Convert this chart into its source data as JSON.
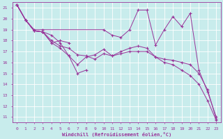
{
  "xlabel": "Windchill (Refroidissement éolien,°C)",
  "bg_color": "#c8ecec",
  "line_color": "#993399",
  "grid_color": "#aadddd",
  "xlim": [
    -0.5,
    23.5
  ],
  "ylim": [
    10.5,
    21.5
  ],
  "yticks": [
    11,
    12,
    13,
    14,
    15,
    16,
    17,
    18,
    19,
    20,
    21
  ],
  "xticks": [
    0,
    1,
    2,
    3,
    4,
    5,
    6,
    7,
    8,
    9,
    10,
    11,
    12,
    13,
    14,
    15,
    16,
    17,
    18,
    19,
    20,
    21,
    22,
    23
  ],
  "series": [
    {
      "x": [
        0,
        1,
        2,
        3,
        4,
        5,
        6,
        7,
        8
      ],
      "y": [
        21.3,
        19.9,
        18.9,
        18.8,
        18.5,
        17.8,
        16.6,
        15.0,
        15.3
      ]
    },
    {
      "x": [
        0,
        1,
        2,
        3,
        4,
        5,
        6
      ],
      "y": [
        21.3,
        19.9,
        18.9,
        18.8,
        17.8,
        18.0,
        17.8
      ]
    },
    {
      "x": [
        0,
        1,
        2,
        3,
        10,
        11,
        12,
        13,
        14,
        15,
        16,
        17,
        18,
        19,
        20,
        21,
        22,
        23
      ],
      "y": [
        21.3,
        19.9,
        19.0,
        19.0,
        19.0,
        18.5,
        18.3,
        19.0,
        20.8,
        20.8,
        17.6,
        19.0,
        20.2,
        19.3,
        20.5,
        15.3,
        13.3,
        11.0
      ]
    },
    {
      "x": [
        0,
        1,
        2,
        3,
        4,
        5,
        6,
        7,
        8,
        9,
        10,
        11,
        12,
        13,
        14,
        15,
        16,
        17,
        18,
        19,
        20,
        21,
        22,
        23
      ],
      "y": [
        21.3,
        19.9,
        18.9,
        18.8,
        18.0,
        17.5,
        17.3,
        16.7,
        16.6,
        16.3,
        16.8,
        16.6,
        16.8,
        17.0,
        17.0,
        17.0,
        16.5,
        16.3,
        16.2,
        16.0,
        15.8,
        15.0,
        13.5,
        10.8
      ]
    },
    {
      "x": [
        0,
        1,
        2,
        3,
        4,
        5,
        6,
        7,
        8,
        9,
        10,
        11,
        12,
        13,
        14,
        15,
        16,
        17,
        18,
        19,
        20,
        21,
        22,
        23
      ],
      "y": [
        21.3,
        19.9,
        18.9,
        18.8,
        17.8,
        17.3,
        16.6,
        15.8,
        16.5,
        16.7,
        17.2,
        16.6,
        17.0,
        17.3,
        17.5,
        17.3,
        16.5,
        16.0,
        15.8,
        15.3,
        14.8,
        14.0,
        12.5,
        10.7
      ]
    }
  ]
}
